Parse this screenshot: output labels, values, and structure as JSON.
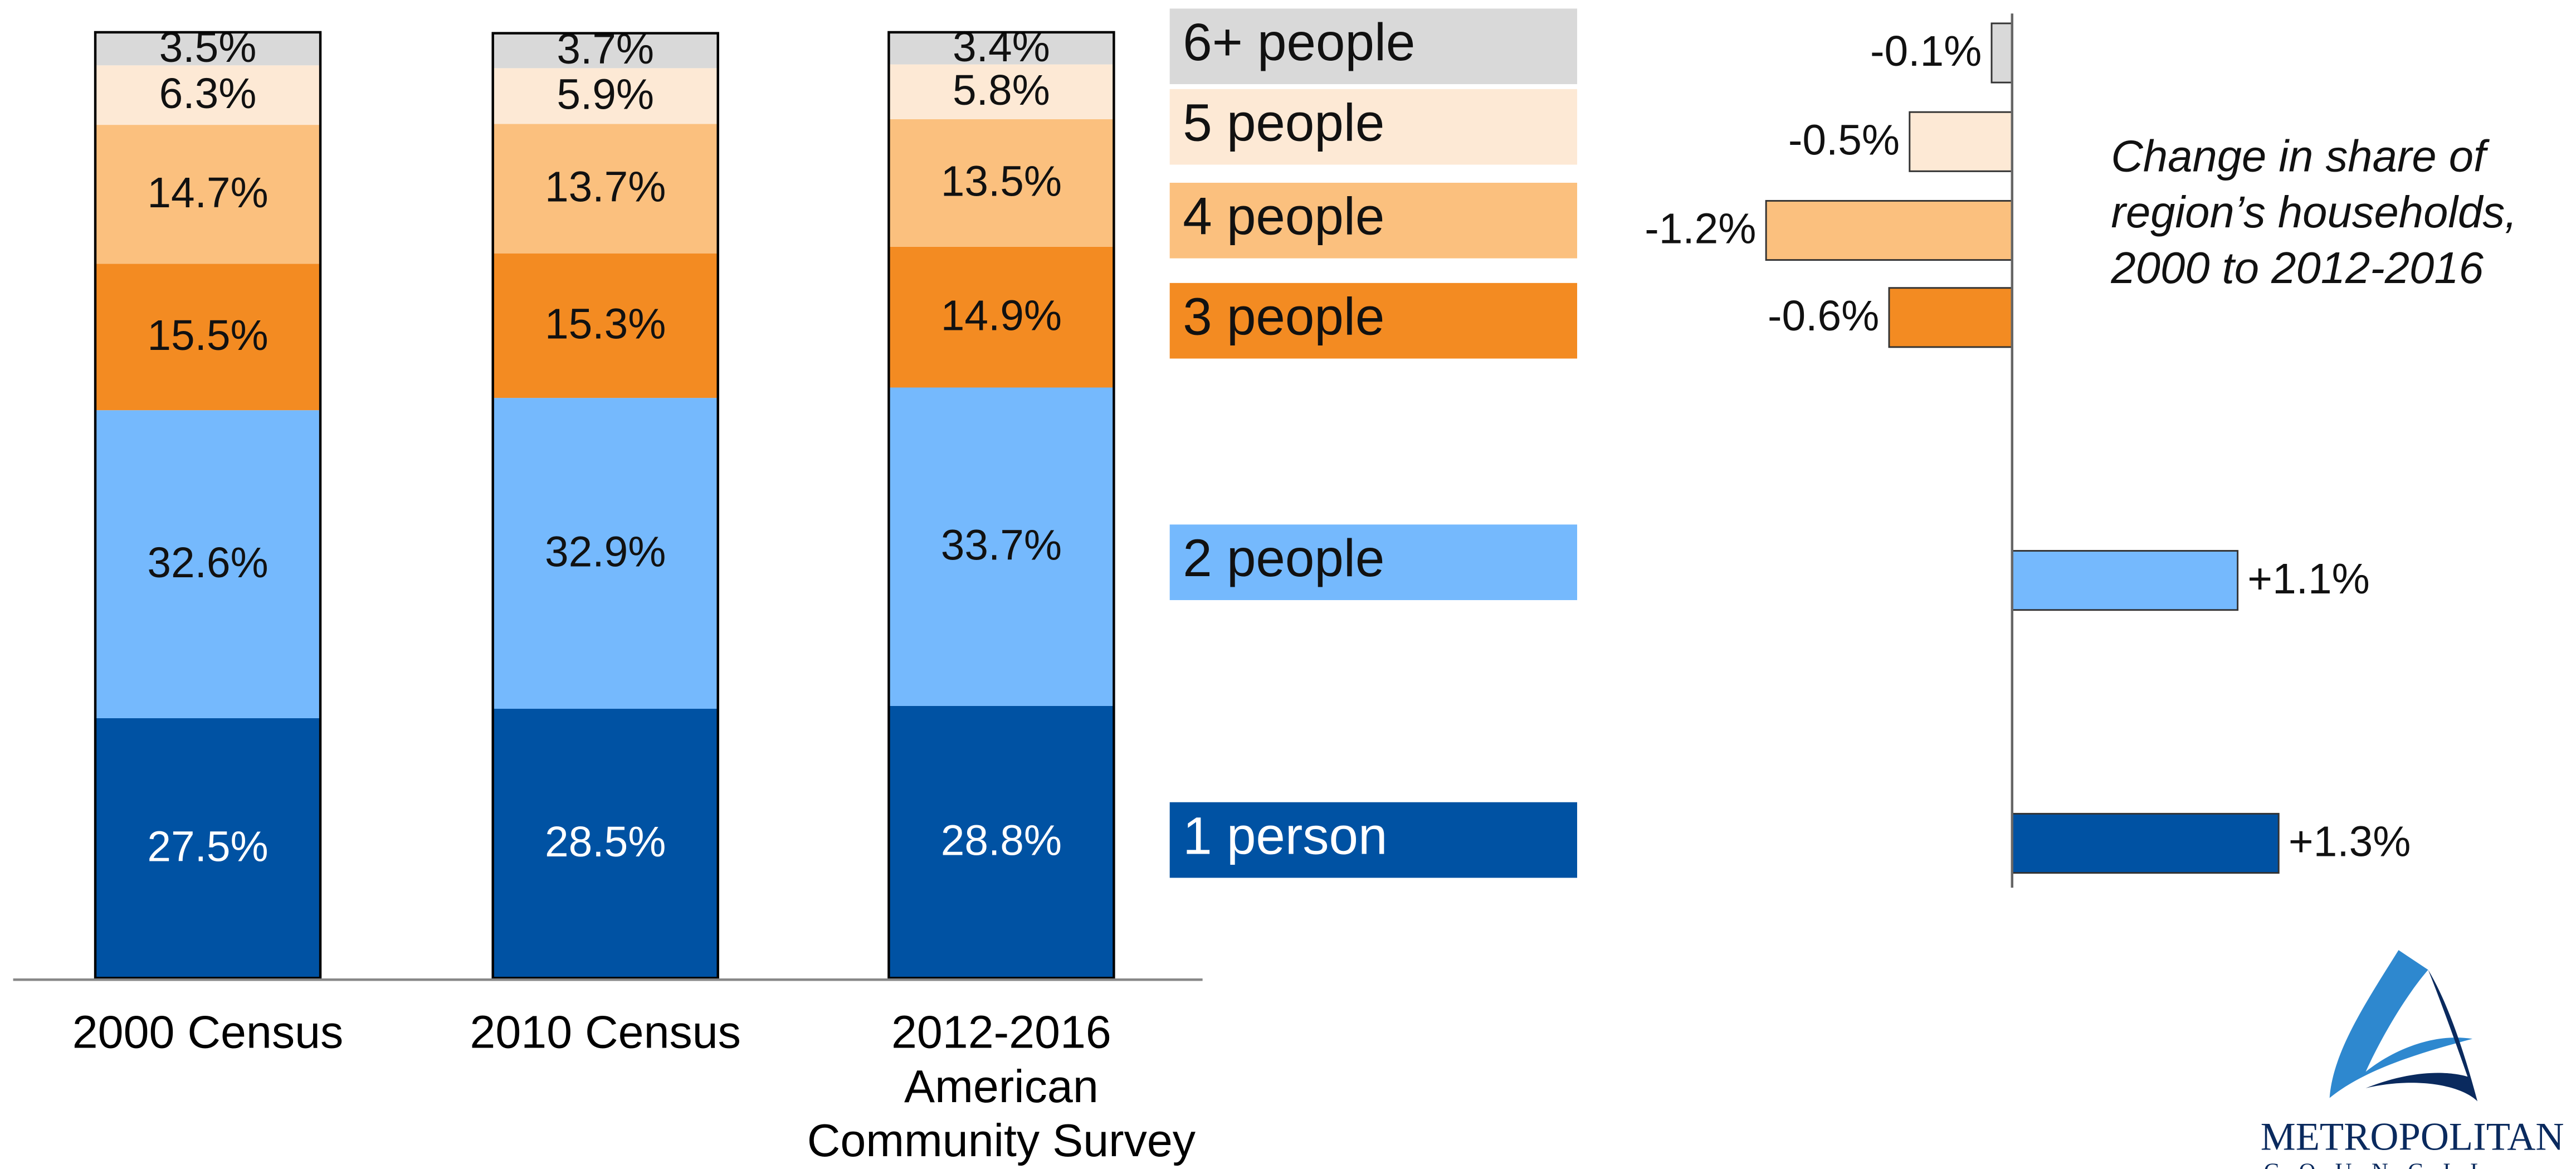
{
  "chart_data": [
    {
      "type": "stacked_bar",
      "categories": [
        "2000 Census",
        "2010 Census",
        "2012-2016 American Community Survey"
      ],
      "ylim": [
        0,
        100
      ],
      "series": [
        {
          "name": "1 person",
          "color": "#0052a3",
          "values": [
            27.5,
            28.5,
            28.8
          ],
          "value_labels": [
            "27.5%",
            "28.5%",
            "28.8%"
          ]
        },
        {
          "name": "2 people",
          "color": "#75b9fd",
          "values": [
            32.6,
            32.9,
            33.7
          ],
          "value_labels": [
            "32.6%",
            "32.9%",
            "33.7%"
          ]
        },
        {
          "name": "3 people",
          "color": "#f38b22",
          "values": [
            15.5,
            15.3,
            14.9
          ],
          "value_labels": [
            "15.5%",
            "15.3%",
            "14.9%"
          ]
        },
        {
          "name": "4 people",
          "color": "#fbc07e",
          "values": [
            14.7,
            13.7,
            13.5
          ],
          "value_labels": [
            "14.7%",
            "13.7%",
            "13.5%"
          ]
        },
        {
          "name": "5 people",
          "color": "#fde9d5",
          "values": [
            6.3,
            5.9,
            5.8
          ],
          "value_labels": [
            "6.3%",
            "5.9%",
            "5.8%"
          ]
        },
        {
          "name": "6+ people",
          "color": "#d9d9d9",
          "values": [
            3.5,
            3.7,
            3.4
          ],
          "value_labels": [
            "3.5%",
            "3.7%",
            "3.4%"
          ]
        }
      ]
    },
    {
      "type": "hbar",
      "title": "Change in share of region’s households, 2000 to 2012-2016",
      "xlim": [
        -1.2,
        1.3
      ],
      "values": [
        -0.1,
        -0.5,
        -1.2,
        -0.6,
        1.1,
        1.3
      ],
      "value_labels": [
        "-0.1%",
        "-0.5%",
        "-1.2%",
        "-0.6%",
        "+1.1%",
        "+1.3%"
      ],
      "colors": [
        "#d9d9d9",
        "#fde9d5",
        "#fbc07e",
        "#f38b22",
        "#75b9fd",
        "#0052a3"
      ]
    }
  ],
  "logo": {
    "name": "METROPOLITAN",
    "subtitle": "COUNCIL"
  }
}
